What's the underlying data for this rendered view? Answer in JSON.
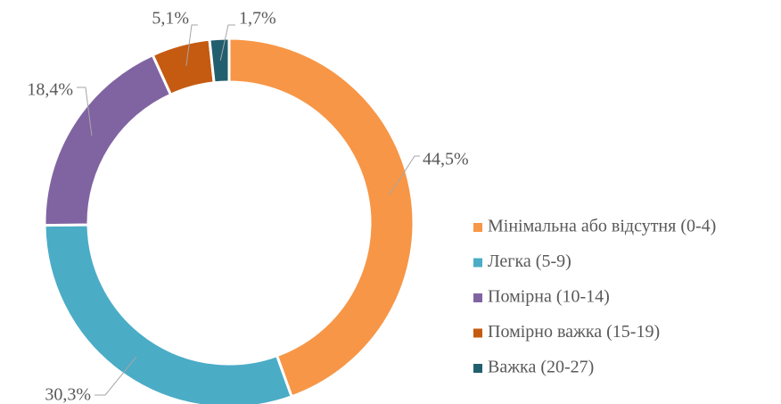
{
  "chart_data": {
    "type": "donut",
    "categories": [
      "Мінімальна або відсутня (0-4)",
      "Легка (5-9)",
      "Помірна (10-14)",
      "Помірно важка (15-19)",
      "Важка (20-27)"
    ],
    "values": [
      44.5,
      30.3,
      18.4,
      5.1,
      1.7
    ],
    "value_labels": [
      "44,5%",
      "30,3%",
      "18,4%",
      "5,1%",
      "1,7%"
    ],
    "colors": [
      "#f79646",
      "#4bacc6",
      "#8064a2",
      "#c55a11",
      "#215f6e"
    ],
    "legend": "right"
  }
}
